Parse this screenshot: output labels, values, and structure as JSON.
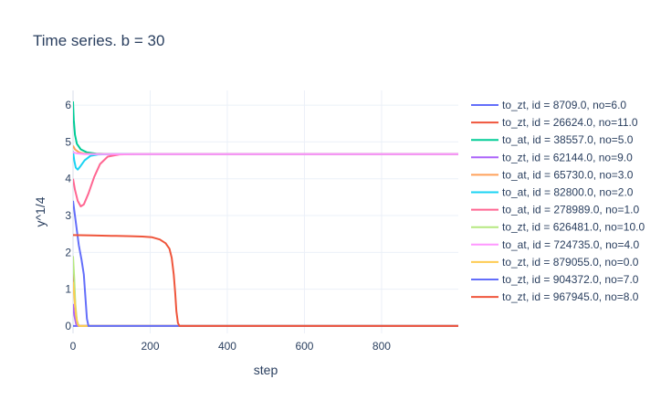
{
  "chart_data": {
    "type": "line",
    "title": "Time series.  b = 30",
    "xlabel": "step",
    "ylabel": "y^1/4",
    "xlim": [
      0,
      999
    ],
    "ylim": [
      -0.2,
      6.4
    ],
    "xticks": [
      0,
      200,
      400,
      600,
      800
    ],
    "yticks": [
      0,
      1,
      2,
      3,
      4,
      5,
      6
    ],
    "grid": true,
    "legend": "right",
    "series": [
      {
        "name": "to_zt, id = 8709.0, no=6.0",
        "color": "#636efa",
        "points": [
          [
            0,
            0.0
          ],
          [
            999,
            0.0
          ]
        ]
      },
      {
        "name": "to_zt, id = 26624.0, no=11.0",
        "color": "#EF553B",
        "points": [
          [
            0,
            1.6
          ],
          [
            3,
            1.1
          ],
          [
            6,
            0.5
          ],
          [
            10,
            0.1
          ],
          [
            14,
            0.0
          ],
          [
            999,
            0.0
          ]
        ]
      },
      {
        "name": "to_at, id = 38557.0, no=5.0",
        "color": "#00cc96",
        "points": [
          [
            0,
            6.1
          ],
          [
            2,
            5.6
          ],
          [
            5,
            5.2
          ],
          [
            10,
            4.95
          ],
          [
            20,
            4.8
          ],
          [
            35,
            4.72
          ],
          [
            60,
            4.68
          ],
          [
            100,
            4.67
          ],
          [
            999,
            4.67
          ]
        ]
      },
      {
        "name": "to_zt, id = 62144.0, no=9.0",
        "color": "#ab63fa",
        "points": [
          [
            0,
            0.6
          ],
          [
            3,
            0.3
          ],
          [
            8,
            0.05
          ],
          [
            12,
            0.0
          ],
          [
            999,
            0.0
          ]
        ]
      },
      {
        "name": "to_at, id = 65730.0, no=3.0",
        "color": "#FFA15A",
        "points": [
          [
            0,
            4.9
          ],
          [
            5,
            4.8
          ],
          [
            15,
            4.72
          ],
          [
            30,
            4.68
          ],
          [
            60,
            4.67
          ],
          [
            999,
            4.67
          ]
        ]
      },
      {
        "name": "to_at, id = 82800.0, no=2.0",
        "color": "#19d3f3",
        "points": [
          [
            0,
            4.75
          ],
          [
            3,
            4.5
          ],
          [
            7,
            4.3
          ],
          [
            12,
            4.25
          ],
          [
            20,
            4.35
          ],
          [
            30,
            4.5
          ],
          [
            45,
            4.62
          ],
          [
            65,
            4.66
          ],
          [
            100,
            4.67
          ],
          [
            999,
            4.67
          ]
        ]
      },
      {
        "name": "to_at, id = 278989.0, no=1.0",
        "color": "#FF6692",
        "points": [
          [
            0,
            4.0
          ],
          [
            5,
            3.7
          ],
          [
            12,
            3.4
          ],
          [
            20,
            3.25
          ],
          [
            28,
            3.3
          ],
          [
            40,
            3.6
          ],
          [
            55,
            4.05
          ],
          [
            70,
            4.4
          ],
          [
            90,
            4.6
          ],
          [
            120,
            4.66
          ],
          [
            160,
            4.67
          ],
          [
            999,
            4.67
          ]
        ]
      },
      {
        "name": "to_zt, id = 626481.0, no=10.0",
        "color": "#B6E880",
        "points": [
          [
            0,
            1.9
          ],
          [
            3,
            1.3
          ],
          [
            6,
            0.6
          ],
          [
            10,
            0.15
          ],
          [
            15,
            0.0
          ],
          [
            999,
            0.0
          ]
        ]
      },
      {
        "name": "to_at, id = 724735.0, no=4.0",
        "color": "#FF97FF",
        "points": [
          [
            0,
            4.72
          ],
          [
            10,
            4.69
          ],
          [
            30,
            4.67
          ],
          [
            999,
            4.67
          ]
        ]
      },
      {
        "name": "to_zt, id = 879055.0, no=0.0",
        "color": "#FECB52",
        "points": [
          [
            0,
            1.2
          ],
          [
            4,
            0.7
          ],
          [
            8,
            0.25
          ],
          [
            12,
            0.05
          ],
          [
            16,
            0.0
          ],
          [
            999,
            0.0
          ]
        ]
      },
      {
        "name": "to_zt, id = 904372.0, no=7.0",
        "color": "#636efa",
        "points": [
          [
            0,
            3.4
          ],
          [
            5,
            3.0
          ],
          [
            10,
            2.6
          ],
          [
            15,
            2.2
          ],
          [
            22,
            1.8
          ],
          [
            28,
            1.4
          ],
          [
            32,
            0.8
          ],
          [
            36,
            0.2
          ],
          [
            40,
            0.0
          ],
          [
            999,
            0.0
          ]
        ]
      },
      {
        "name": "to_zt, id = 967945.0, no=8.0",
        "color": "#EF553B",
        "points": [
          [
            0,
            2.47
          ],
          [
            50,
            2.46
          ],
          [
            100,
            2.45
          ],
          [
            150,
            2.44
          ],
          [
            180,
            2.43
          ],
          [
            205,
            2.41
          ],
          [
            225,
            2.35
          ],
          [
            240,
            2.25
          ],
          [
            250,
            2.1
          ],
          [
            256,
            1.85
          ],
          [
            261,
            1.4
          ],
          [
            265,
            0.9
          ],
          [
            268,
            0.4
          ],
          [
            272,
            0.08
          ],
          [
            276,
            0.0
          ],
          [
            999,
            0.0
          ]
        ]
      }
    ]
  }
}
